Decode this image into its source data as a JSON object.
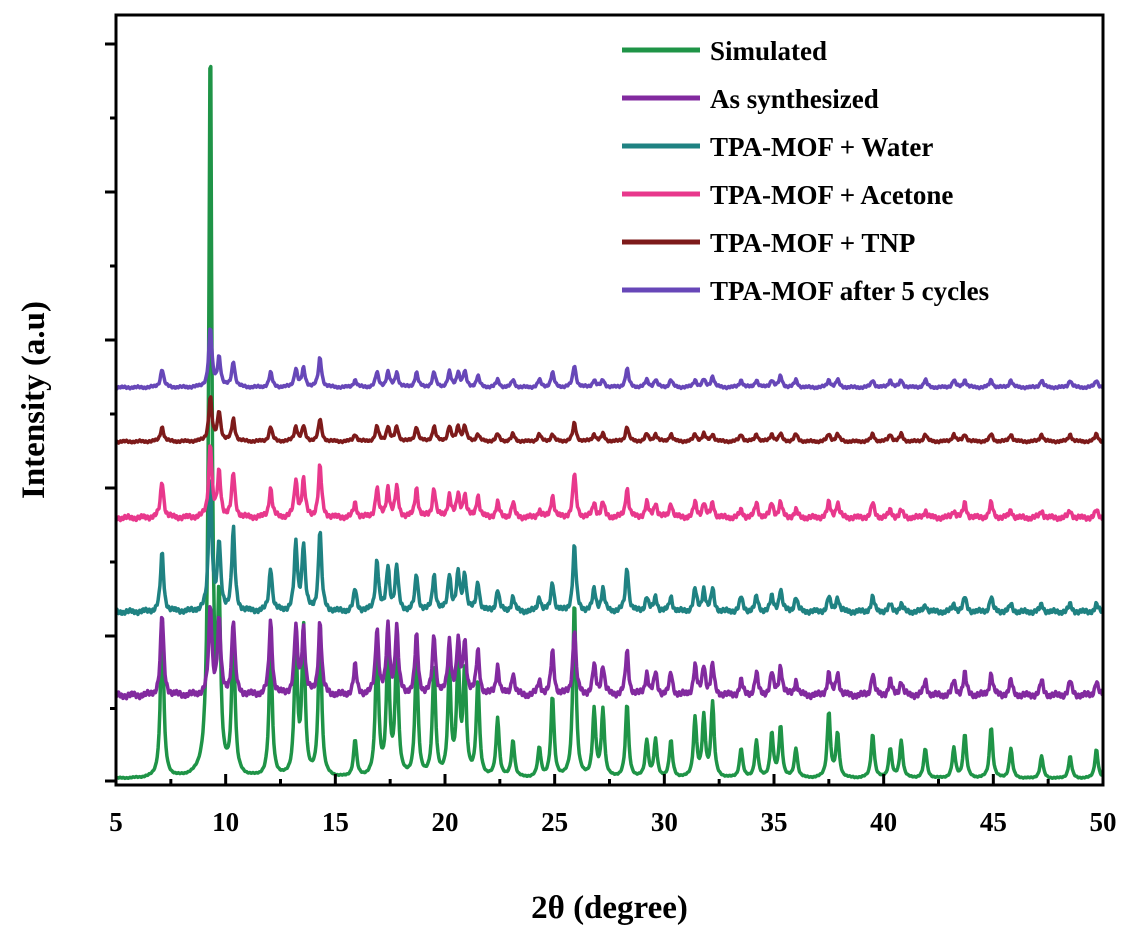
{
  "chart_data": {
    "type": "line",
    "title": "",
    "xlabel": "2θ (degree)",
    "ylabel": "Intensity (a.u)",
    "xlim": [
      5,
      50
    ],
    "ylim": [
      0,
      100
    ],
    "x_ticks": [
      5,
      10,
      15,
      20,
      25,
      30,
      35,
      40,
      45,
      50
    ],
    "y_ticks_labeled": false,
    "y_ticks": [
      0,
      20,
      40,
      60,
      80,
      100
    ],
    "grid": false,
    "legend_position": "top-right",
    "peak_positions": [
      7.1,
      9.3,
      9.7,
      10.35,
      12.05,
      13.2,
      13.55,
      14.3,
      15.9,
      16.9,
      17.4,
      17.8,
      18.7,
      19.5,
      20.2,
      20.6,
      20.9,
      21.5,
      22.4,
      23.1,
      24.3,
      24.9,
      25.9,
      26.8,
      27.2,
      28.3,
      29.2,
      29.6,
      30.3,
      31.4,
      31.8,
      32.2,
      33.5,
      34.2,
      34.9,
      35.3,
      36.0,
      37.5,
      37.9,
      39.5,
      40.3,
      40.8,
      41.9,
      43.2,
      43.7,
      44.9,
      45.8,
      47.2,
      48.5,
      49.7
    ],
    "series": [
      {
        "name": "Simulated",
        "color": "#1f9447",
        "baseline": 0.3,
        "noise": 0.1,
        "heights": [
          22,
          100,
          22,
          20,
          18,
          18,
          20,
          21,
          5,
          18,
          17,
          17,
          16,
          15,
          14,
          15,
          14,
          13,
          8,
          5,
          4,
          11,
          24,
          9,
          9,
          10,
          5,
          5,
          5,
          8,
          8,
          10,
          4,
          5,
          6,
          7,
          4,
          9,
          6,
          6,
          4,
          5,
          4,
          4,
          6,
          7,
          4,
          3,
          3,
          4
        ]
      },
      {
        "name": "As synthesized",
        "color": "#822a9f",
        "baseline": 11.5,
        "noise": 0.5,
        "heights": [
          11,
          12,
          10,
          10,
          10,
          9,
          9,
          10,
          4,
          9,
          9,
          9,
          8,
          8,
          7,
          7,
          7,
          6,
          4,
          3,
          2,
          6,
          9,
          4,
          4,
          6,
          3,
          3,
          3,
          4,
          4,
          4,
          2,
          3,
          3,
          4,
          2,
          3,
          3,
          3,
          2,
          2,
          2,
          2,
          3,
          3,
          2,
          2,
          2,
          2
        ]
      },
      {
        "name": "TPA-MOF + Water",
        "color": "#1f8282",
        "baseline": 22.8,
        "noise": 0.4,
        "heights": [
          8,
          18,
          9,
          11,
          6,
          9,
          9,
          11,
          3,
          7,
          6,
          6,
          5,
          5,
          5,
          5,
          5,
          4,
          3,
          2,
          2,
          4,
          9,
          3,
          3,
          6,
          2,
          2,
          2,
          3,
          3,
          3,
          2,
          2,
          2,
          3,
          2,
          2,
          2,
          2,
          1,
          1,
          1,
          1,
          2,
          2,
          1,
          1,
          1,
          1
        ]
      },
      {
        "name": "TPA-MOF + Acetone",
        "color": "#e8388c",
        "baseline": 35.5,
        "noise": 0.4,
        "heights": [
          5,
          10,
          6,
          6,
          4,
          5,
          5,
          7,
          2,
          4,
          4,
          4,
          4,
          4,
          3,
          3,
          3,
          3,
          2,
          2,
          1,
          3,
          6,
          2,
          2,
          4,
          2,
          2,
          2,
          2,
          2,
          2,
          1,
          2,
          2,
          2,
          1,
          2,
          2,
          2,
          1,
          1,
          1,
          1,
          2,
          2,
          1,
          1,
          1,
          1
        ]
      },
      {
        "name": "TPA-MOF + TNP",
        "color": "#7d1a1a",
        "baseline": 45.8,
        "noise": 0.2,
        "heights": [
          2,
          6,
          4,
          3,
          2,
          2,
          2,
          3,
          1,
          2,
          2,
          2,
          2,
          2,
          2,
          2,
          2,
          1,
          1,
          1,
          1,
          1,
          2.5,
          1,
          1,
          2,
          1,
          1,
          1,
          1,
          1,
          1,
          1,
          1,
          1,
          1,
          1,
          1,
          1,
          1,
          1,
          1,
          1,
          1,
          1,
          1,
          1,
          1,
          1,
          1
        ]
      },
      {
        "name": "TPA-MOF after 5 cycles",
        "color": "#6747b8",
        "baseline": 53.1,
        "noise": 0.2,
        "heights": [
          2.5,
          8,
          4,
          3.5,
          2,
          2.5,
          2.5,
          4,
          1,
          2,
          2,
          2,
          2,
          2,
          2,
          2,
          2,
          1.5,
          1,
          1,
          1,
          2,
          3,
          1,
          1,
          2.5,
          1,
          1,
          1,
          1,
          1,
          1.5,
          1,
          1,
          1,
          1.5,
          1,
          1,
          1,
          1,
          1,
          1,
          1,
          1,
          1,
          1,
          1,
          1,
          1,
          1
        ]
      }
    ]
  }
}
